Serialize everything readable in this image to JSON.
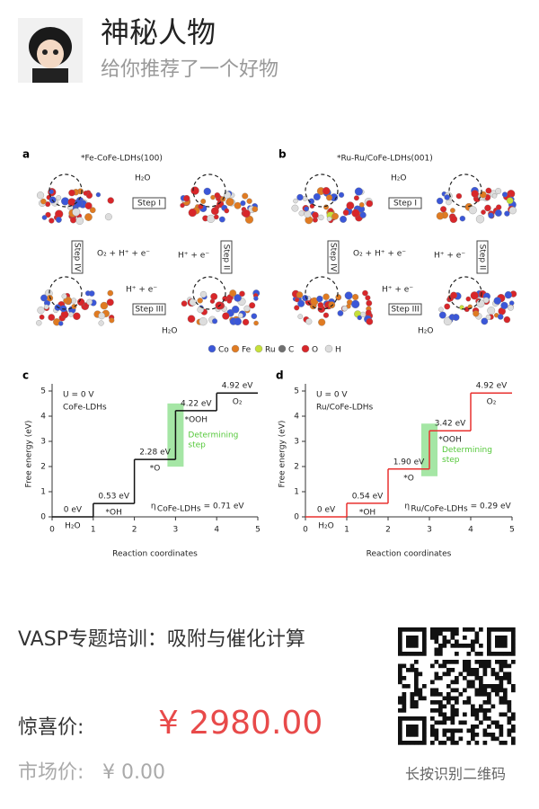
{
  "header": {
    "name": "神秘人物",
    "subtitle": "给你推荐了一个好物"
  },
  "figure": {
    "legend": [
      {
        "name": "Co",
        "color": "#3b57d8"
      },
      {
        "name": "Fe",
        "color": "#e07b22"
      },
      {
        "name": "Ru",
        "color": "#c6e03a"
      },
      {
        "name": "C",
        "color": "#6f6f6f"
      },
      {
        "name": "O",
        "color": "#d8262a"
      },
      {
        "name": "H",
        "color": "#dddddd"
      }
    ],
    "panels": [
      {
        "letter": "a",
        "title": "*Fe-CoFe-LDHs(100)",
        "h2o_top": "H₂O",
        "step1": "Step I",
        "step2": "Step II",
        "step3": "Step III",
        "step4": "Step IV",
        "o2": "O₂ + H⁺ + e⁻",
        "h_right": "H⁺ + e⁻",
        "h_bottom": "H⁺ + e⁻",
        "h2o_bottom": "H₂O"
      },
      {
        "letter": "b",
        "title": "*Ru-Ru/CoFe-LDHs(001)",
        "h2o_top": "H₂O",
        "step1": "Step I",
        "step2": "Step II",
        "step3": "Step III",
        "step4": "Step IV",
        "o2": "O₂ + H⁺ + e⁻",
        "h_right": "H⁺ + e⁻",
        "h_bottom": "H⁺ + e⁻",
        "h2o_bottom": "H₂O"
      }
    ],
    "chart_data": [
      {
        "type": "step",
        "letter": "c",
        "color": "#111111",
        "condition": "U = 0 V",
        "material": "CoFe-LDHs",
        "x": [
          0,
          1,
          2,
          3,
          4
        ],
        "values": [
          0,
          0.53,
          2.28,
          4.22,
          4.92
        ],
        "value_labels": [
          "0 eV",
          "0.53 eV",
          "2.28 eV",
          "4.22 eV",
          "4.92 eV"
        ],
        "labels": [
          "H₂O",
          "*OH",
          "*O",
          "*OOH",
          "O₂"
        ],
        "determining": [
          "Determining",
          "step"
        ],
        "highlight_color": "#8fe08f",
        "eta": {
          "symbol": "η",
          "sub": "CoFe-LDHs",
          "text": "= 0.71 eV"
        },
        "xlabel": "Reaction coordinates",
        "ylabel": "Free energy (eV)",
        "xlim": [
          0,
          5
        ],
        "xticks": [
          0,
          1,
          2,
          3,
          4,
          5
        ],
        "ylim": [
          0,
          5
        ],
        "yticks": [
          0,
          1,
          2,
          3,
          4,
          5
        ]
      },
      {
        "type": "step",
        "letter": "d",
        "color": "#e8312f",
        "condition": "U = 0 V",
        "material": "Ru/CoFe-LDHs",
        "x": [
          0,
          1,
          2,
          3,
          4
        ],
        "values": [
          0,
          0.54,
          1.9,
          3.42,
          4.92
        ],
        "value_labels": [
          "0 eV",
          "0.54 eV",
          "1.90 eV",
          "3.42 eV",
          "4.92 eV"
        ],
        "labels": [
          "H₂O",
          "*OH",
          "*O",
          "*OOH",
          "O₂"
        ],
        "determining": [
          "Determining",
          "step"
        ],
        "highlight_color": "#8fe08f",
        "eta": {
          "symbol": "η",
          "sub": "Ru/CoFe-LDHs",
          "text": "= 0.29 eV"
        },
        "xlabel": "Reaction coordinates",
        "ylabel": "Free energy (eV)",
        "xlim": [
          0,
          5
        ],
        "xticks": [
          0,
          1,
          2,
          3,
          4,
          5
        ],
        "ylim": [
          0,
          5
        ],
        "yticks": [
          0,
          1,
          2,
          3,
          4,
          5
        ]
      }
    ]
  },
  "product": {
    "title": "VASP专题培训：吸附与催化计算",
    "price_label": "惊喜价:",
    "price": "¥ 2980.00",
    "market_label": "市场价:",
    "market_price": "¥ 0.00",
    "qr_hint": "长按识别二维码"
  }
}
